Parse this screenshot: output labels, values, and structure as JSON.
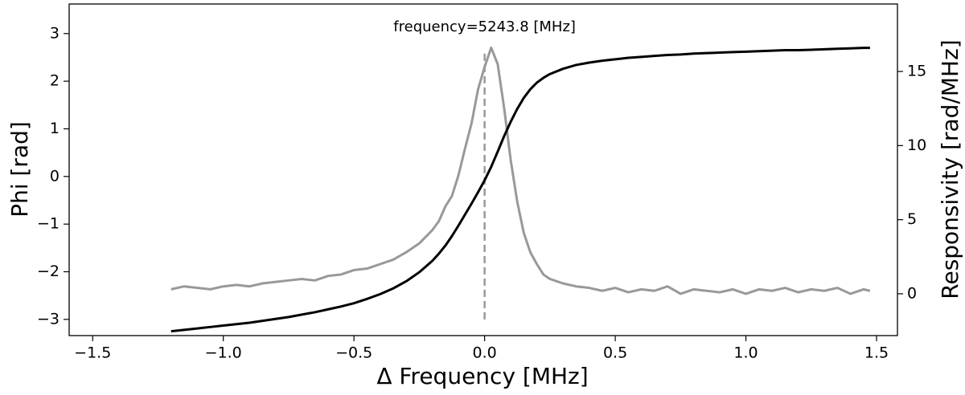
{
  "chart_data": {
    "type": "line",
    "xlabel": "Δ Frequency [MHz]",
    "ylabel": "Phi [rad]",
    "y2label": "Responsivity [rad/MHz]",
    "xlim": [
      -1.59,
      1.58
    ],
    "ylim": [
      -3.34,
      3.62
    ],
    "y2lim": [
      -2.82,
      19.55
    ],
    "xticks": [
      {
        "value": -1.5,
        "label": "−1.5"
      },
      {
        "value": -1.0,
        "label": "−1.0"
      },
      {
        "value": -0.5,
        "label": "−0.5"
      },
      {
        "value": 0,
        "label": "0.0"
      },
      {
        "value": 0.5,
        "label": "0.5"
      },
      {
        "value": 1.0,
        "label": "1.0"
      },
      {
        "value": 1.5,
        "label": "1.5"
      }
    ],
    "yticks": [
      {
        "value": -3,
        "label": "−3"
      },
      {
        "value": -2,
        "label": "−2"
      },
      {
        "value": -1,
        "label": "−1"
      },
      0,
      1,
      2,
      3
    ],
    "y2ticks": [
      0,
      5,
      10,
      15
    ],
    "annotation": {
      "text": "frequency=5243.8 [MHz]",
      "x": 0,
      "ymin": -3,
      "ymax": 2.66,
      "color": "#999999"
    },
    "series": [
      {
        "name": "Phi",
        "color": "#000000",
        "x": [
          -1.2,
          -1.15,
          -1.1,
          -1.05,
          -1.0,
          -0.95,
          -0.9,
          -0.85,
          -0.8,
          -0.75,
          -0.7,
          -0.65,
          -0.6,
          -0.55,
          -0.5,
          -0.45,
          -0.4,
          -0.35,
          -0.3,
          -0.25,
          -0.2,
          -0.175,
          -0.15,
          -0.125,
          -0.1,
          -0.075,
          -0.05,
          -0.025,
          0,
          0.025,
          0.05,
          0.075,
          0.1,
          0.125,
          0.15,
          0.175,
          0.2,
          0.225,
          0.25,
          0.3,
          0.35,
          0.4,
          0.45,
          0.5,
          0.55,
          0.6,
          0.65,
          0.7,
          0.75,
          0.8,
          0.85,
          0.9,
          0.95,
          1.0,
          1.05,
          1.1,
          1.15,
          1.2,
          1.25,
          1.3,
          1.35,
          1.4,
          1.45,
          1.475
        ],
        "values": [
          -3.25,
          -3.22,
          -3.19,
          -3.16,
          -3.13,
          -3.1,
          -3.07,
          -3.03,
          -2.99,
          -2.95,
          -2.9,
          -2.85,
          -2.79,
          -2.73,
          -2.66,
          -2.57,
          -2.47,
          -2.35,
          -2.2,
          -2.01,
          -1.77,
          -1.62,
          -1.45,
          -1.25,
          -1.03,
          -0.8,
          -0.57,
          -0.33,
          -0.08,
          0.2,
          0.52,
          0.85,
          1.15,
          1.42,
          1.65,
          1.83,
          1.97,
          2.07,
          2.15,
          2.26,
          2.34,
          2.39,
          2.43,
          2.46,
          2.49,
          2.51,
          2.53,
          2.55,
          2.56,
          2.58,
          2.59,
          2.6,
          2.61,
          2.62,
          2.63,
          2.64,
          2.65,
          2.65,
          2.66,
          2.67,
          2.68,
          2.69,
          2.7,
          2.7
        ]
      },
      {
        "name": "Responsivity",
        "color": "#999999",
        "axis": "y2",
        "x": [
          -1.2,
          -1.15,
          -1.1,
          -1.05,
          -1.0,
          -0.95,
          -0.9,
          -0.85,
          -0.8,
          -0.75,
          -0.7,
          -0.65,
          -0.6,
          -0.55,
          -0.5,
          -0.45,
          -0.4,
          -0.35,
          -0.3,
          -0.25,
          -0.2,
          -0.175,
          -0.15,
          -0.125,
          -0.1,
          -0.075,
          -0.05,
          -0.025,
          0,
          0.025,
          0.05,
          0.075,
          0.1,
          0.125,
          0.15,
          0.175,
          0.2,
          0.225,
          0.25,
          0.3,
          0.35,
          0.4,
          0.45,
          0.5,
          0.55,
          0.6,
          0.65,
          0.7,
          0.75,
          0.8,
          0.85,
          0.9,
          0.95,
          1.0,
          1.05,
          1.1,
          1.15,
          1.2,
          1.25,
          1.3,
          1.35,
          1.4,
          1.45,
          1.475
        ],
        "values": [
          0.3,
          0.5,
          0.4,
          0.3,
          0.5,
          0.6,
          0.5,
          0.7,
          0.8,
          0.9,
          1.0,
          0.9,
          1.2,
          1.3,
          1.6,
          1.7,
          2.0,
          2.3,
          2.8,
          3.4,
          4.3,
          4.9,
          5.9,
          6.6,
          8.0,
          9.8,
          11.5,
          13.8,
          15.3,
          16.6,
          15.5,
          12.5,
          9.0,
          6.2,
          4.1,
          2.8,
          2.0,
          1.3,
          1.0,
          0.7,
          0.5,
          0.4,
          0.2,
          0.4,
          0.1,
          0.3,
          0.2,
          0.5,
          0.0,
          0.3,
          0.2,
          0.1,
          0.3,
          0.0,
          0.3,
          0.2,
          0.4,
          0.1,
          0.3,
          0.2,
          0.4,
          0.0,
          0.3,
          0.2
        ]
      }
    ]
  }
}
